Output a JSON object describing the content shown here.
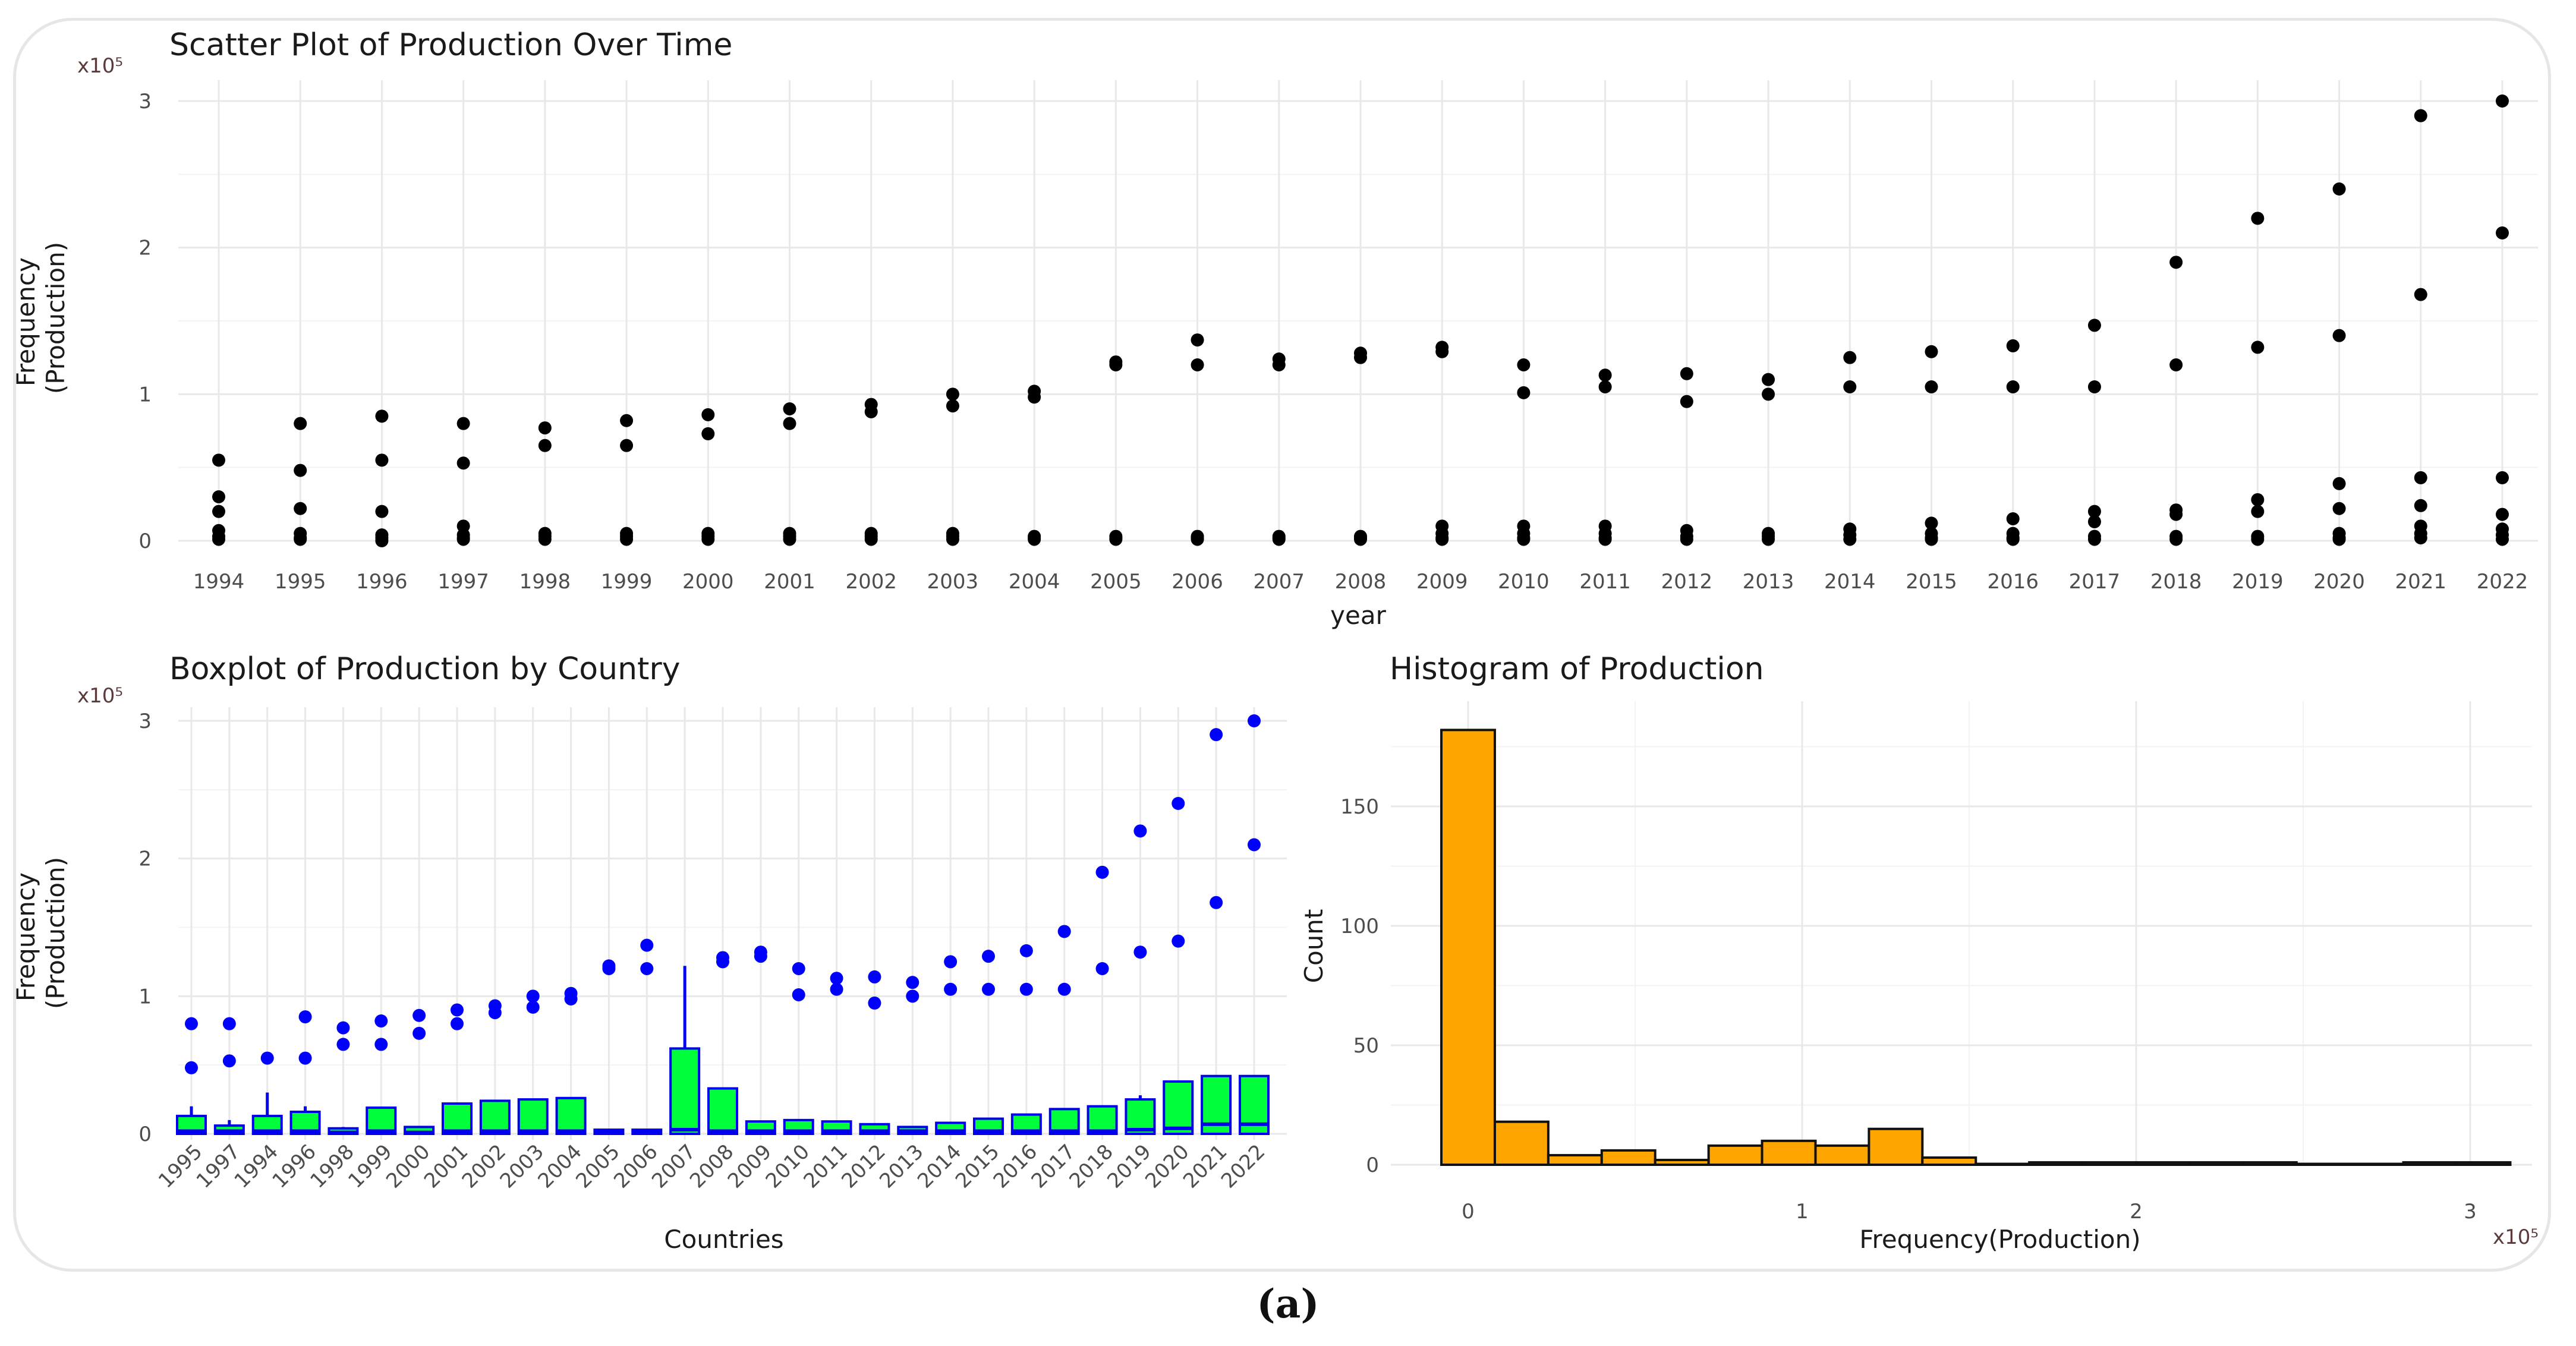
{
  "caption": "(a)",
  "charts": {
    "scatter": {
      "title": "Scatter Plot of Production Over Time",
      "multiplier": "x10⁵",
      "ylabel_line1": "Frequency",
      "ylabel_line2": "(Production)",
      "xlabel": "year"
    },
    "boxplot": {
      "title": "Boxplot of Production by Country",
      "multiplier": "x10⁵",
      "ylabel_line1": "Frequency",
      "ylabel_line2": "(Production)",
      "xlabel": "Countries"
    },
    "histogram": {
      "title": "Histogram of Production",
      "multiplier": "x10⁵",
      "ylabel": "Count",
      "xlabel": "Frequency(Production)"
    }
  },
  "chart_data": [
    {
      "type": "scatter",
      "title": "Scatter Plot of Production Over Time",
      "xlabel": "year",
      "ylabel": "Frequency (Production)",
      "y_multiplier": "x10^5",
      "ylim": [
        0,
        3
      ],
      "yticks": [
        0,
        1,
        2,
        3
      ],
      "categories": [
        "1994",
        "1995",
        "1996",
        "1997",
        "1998",
        "1999",
        "2000",
        "2001",
        "2002",
        "2003",
        "2004",
        "2005",
        "2006",
        "2007",
        "2008",
        "2009",
        "2010",
        "2011",
        "2012",
        "2013",
        "2014",
        "2015",
        "2016",
        "2017",
        "2018",
        "2019",
        "2020",
        "2021",
        "2022"
      ],
      "points_by_year": [
        [
          0.55,
          0.3,
          0.2,
          0.07,
          0.03,
          0.01
        ],
        [
          0.8,
          0.48,
          0.22,
          0.05,
          0.02,
          0.01
        ],
        [
          0.85,
          0.55,
          0.2,
          0.04,
          0.02,
          0.0
        ],
        [
          0.8,
          0.53,
          0.1,
          0.04,
          0.02,
          0.01
        ],
        [
          0.77,
          0.65,
          0.05,
          0.03,
          0.01
        ],
        [
          0.82,
          0.65,
          0.05,
          0.03,
          0.01
        ],
        [
          0.86,
          0.73,
          0.05,
          0.03,
          0.01
        ],
        [
          0.9,
          0.8,
          0.05,
          0.03,
          0.01
        ],
        [
          0.93,
          0.88,
          0.05,
          0.03,
          0.01
        ],
        [
          1.0,
          0.92,
          0.05,
          0.03,
          0.01
        ],
        [
          1.02,
          0.98,
          0.03,
          0.02,
          0.01
        ],
        [
          1.22,
          1.2,
          0.03,
          0.02,
          0.01
        ],
        [
          1.37,
          1.2,
          0.03,
          0.02,
          0.01
        ],
        [
          1.24,
          1.2,
          0.03,
          0.02,
          0.01
        ],
        [
          1.28,
          1.25,
          0.03,
          0.02,
          0.01
        ],
        [
          1.32,
          1.29,
          0.1,
          0.05,
          0.02,
          0.01
        ],
        [
          1.2,
          1.01,
          0.1,
          0.05,
          0.02,
          0.01
        ],
        [
          1.13,
          1.05,
          0.1,
          0.05,
          0.02,
          0.01
        ],
        [
          1.14,
          0.95,
          0.07,
          0.03,
          0.01
        ],
        [
          1.1,
          1.0,
          0.05,
          0.03,
          0.01
        ],
        [
          1.25,
          1.05,
          0.08,
          0.04,
          0.01
        ],
        [
          1.29,
          1.05,
          0.12,
          0.05,
          0.02,
          0.01
        ],
        [
          1.33,
          1.05,
          0.15,
          0.05,
          0.02,
          0.01
        ],
        [
          1.47,
          1.05,
          0.2,
          0.13,
          0.03,
          0.01
        ],
        [
          1.9,
          1.2,
          0.21,
          0.18,
          0.03,
          0.01
        ],
        [
          2.2,
          1.32,
          0.28,
          0.2,
          0.03,
          0.01
        ],
        [
          2.4,
          1.4,
          0.39,
          0.22,
          0.05,
          0.02,
          0.01
        ],
        [
          2.9,
          1.68,
          0.43,
          0.24,
          0.1,
          0.05,
          0.02
        ],
        [
          3.0,
          2.1,
          0.43,
          0.18,
          0.08,
          0.04,
          0.01
        ]
      ]
    },
    {
      "type": "boxplot",
      "title": "Boxplot of Production by Country",
      "xlabel": "Countries",
      "ylabel": "Frequency (Production)",
      "y_multiplier": "x10^5",
      "ylim": [
        0,
        3
      ],
      "yticks": [
        0,
        1,
        2,
        3
      ],
      "categories": [
        "1995",
        "1997",
        "1994",
        "1996",
        "1998",
        "1999",
        "2000",
        "2001",
        "2002",
        "2003",
        "2004",
        "2005",
        "2006",
        "2007",
        "2008",
        "2009",
        "2010",
        "2011",
        "2012",
        "2013",
        "2014",
        "2015",
        "2016",
        "2017",
        "2018",
        "2019",
        "2020",
        "2021",
        "2022"
      ],
      "boxes": [
        {
          "q1": 0.0,
          "median": 0.02,
          "q3": 0.13,
          "whisker_high": 0.2,
          "outliers": [
            0.48,
            0.8
          ]
        },
        {
          "q1": 0.0,
          "median": 0.02,
          "q3": 0.06,
          "whisker_high": 0.1,
          "outliers": [
            0.53,
            0.8
          ]
        },
        {
          "q1": 0.0,
          "median": 0.02,
          "q3": 0.13,
          "whisker_high": 0.3,
          "outliers": [
            0.55
          ]
        },
        {
          "q1": 0.0,
          "median": 0.02,
          "q3": 0.16,
          "whisker_high": 0.2,
          "outliers": [
            0.55,
            0.85
          ]
        },
        {
          "q1": 0.0,
          "median": 0.01,
          "q3": 0.04,
          "whisker_high": 0.05,
          "outliers": [
            0.65,
            0.77
          ]
        },
        {
          "q1": 0.0,
          "median": 0.02,
          "q3": 0.19,
          "whisker_high": 0.19,
          "outliers": [
            0.65,
            0.82
          ]
        },
        {
          "q1": 0.0,
          "median": 0.01,
          "q3": 0.05,
          "whisker_high": 0.05,
          "outliers": [
            0.73,
            0.86
          ]
        },
        {
          "q1": 0.0,
          "median": 0.02,
          "q3": 0.22,
          "whisker_high": 0.22,
          "outliers": [
            0.8,
            0.9
          ]
        },
        {
          "q1": 0.0,
          "median": 0.02,
          "q3": 0.24,
          "whisker_high": 0.24,
          "outliers": [
            0.88,
            0.93
          ]
        },
        {
          "q1": 0.0,
          "median": 0.02,
          "q3": 0.25,
          "whisker_high": 0.25,
          "outliers": [
            0.92,
            1.0
          ]
        },
        {
          "q1": 0.0,
          "median": 0.02,
          "q3": 0.26,
          "whisker_high": 0.26,
          "outliers": [
            0.98,
            1.02
          ]
        },
        {
          "q1": 0.0,
          "median": 0.01,
          "q3": 0.03,
          "whisker_high": 0.03,
          "outliers": [
            1.2,
            1.22
          ]
        },
        {
          "q1": 0.0,
          "median": 0.01,
          "q3": 0.03,
          "whisker_high": 0.03,
          "outliers": [
            1.2,
            1.37
          ]
        },
        {
          "q1": 0.0,
          "median": 0.03,
          "q3": 0.62,
          "whisker_high": 1.22,
          "outliers": []
        },
        {
          "q1": 0.0,
          "median": 0.02,
          "q3": 0.33,
          "whisker_high": 0.33,
          "outliers": [
            1.25,
            1.28
          ]
        },
        {
          "q1": 0.0,
          "median": 0.02,
          "q3": 0.09,
          "whisker_high": 0.09,
          "outliers": [
            1.29,
            1.32
          ]
        },
        {
          "q1": 0.0,
          "median": 0.02,
          "q3": 0.1,
          "whisker_high": 0.1,
          "outliers": [
            1.01,
            1.2
          ]
        },
        {
          "q1": 0.0,
          "median": 0.02,
          "q3": 0.09,
          "whisker_high": 0.09,
          "outliers": [
            1.05,
            1.13
          ]
        },
        {
          "q1": 0.0,
          "median": 0.02,
          "q3": 0.07,
          "whisker_high": 0.07,
          "outliers": [
            0.95,
            1.14
          ]
        },
        {
          "q1": 0.0,
          "median": 0.02,
          "q3": 0.05,
          "whisker_high": 0.05,
          "outliers": [
            1.0,
            1.1
          ]
        },
        {
          "q1": 0.0,
          "median": 0.02,
          "q3": 0.08,
          "whisker_high": 0.08,
          "outliers": [
            1.05,
            1.25
          ]
        },
        {
          "q1": 0.0,
          "median": 0.02,
          "q3": 0.11,
          "whisker_high": 0.11,
          "outliers": [
            1.05,
            1.29
          ]
        },
        {
          "q1": 0.0,
          "median": 0.02,
          "q3": 0.14,
          "whisker_high": 0.14,
          "outliers": [
            1.05,
            1.33
          ]
        },
        {
          "q1": 0.0,
          "median": 0.02,
          "q3": 0.18,
          "whisker_high": 0.18,
          "outliers": [
            1.05,
            1.47
          ]
        },
        {
          "q1": 0.0,
          "median": 0.02,
          "q3": 0.2,
          "whisker_high": 0.2,
          "outliers": [
            1.2,
            1.9
          ]
        },
        {
          "q1": 0.0,
          "median": 0.03,
          "q3": 0.25,
          "whisker_high": 0.28,
          "outliers": [
            1.32,
            2.2
          ]
        },
        {
          "q1": 0.0,
          "median": 0.04,
          "q3": 0.38,
          "whisker_high": 0.38,
          "outliers": [
            1.4,
            2.4
          ]
        },
        {
          "q1": 0.0,
          "median": 0.07,
          "q3": 0.42,
          "whisker_high": 0.42,
          "outliers": [
            1.68,
            2.9
          ]
        },
        {
          "q1": 0.0,
          "median": 0.07,
          "q3": 0.42,
          "whisker_high": 0.42,
          "outliers": [
            2.1,
            3.0
          ]
        }
      ]
    },
    {
      "type": "bar",
      "subtype": "histogram",
      "title": "Histogram of Production",
      "xlabel": "Frequency(Production)",
      "ylabel": "Count",
      "x_multiplier": "x10^5",
      "xlim": [
        -0.1,
        3.15
      ],
      "ylim": [
        0,
        190
      ],
      "xticks": [
        0,
        1,
        2,
        3
      ],
      "yticks": [
        0,
        50,
        100,
        150
      ],
      "bin_edges": [
        -0.08,
        0.08,
        0.24,
        0.4,
        0.56,
        0.72,
        0.88,
        1.04,
        1.2,
        1.36,
        1.52,
        1.68,
        1.84,
        2.0,
        2.16,
        2.32,
        2.48,
        2.64,
        2.8,
        2.96,
        3.12
      ],
      "counts": [
        182,
        18,
        4,
        6,
        2,
        8,
        10,
        8,
        15,
        3,
        0,
        1,
        1,
        1,
        1,
        1,
        0,
        0,
        1,
        1
      ]
    }
  ]
}
